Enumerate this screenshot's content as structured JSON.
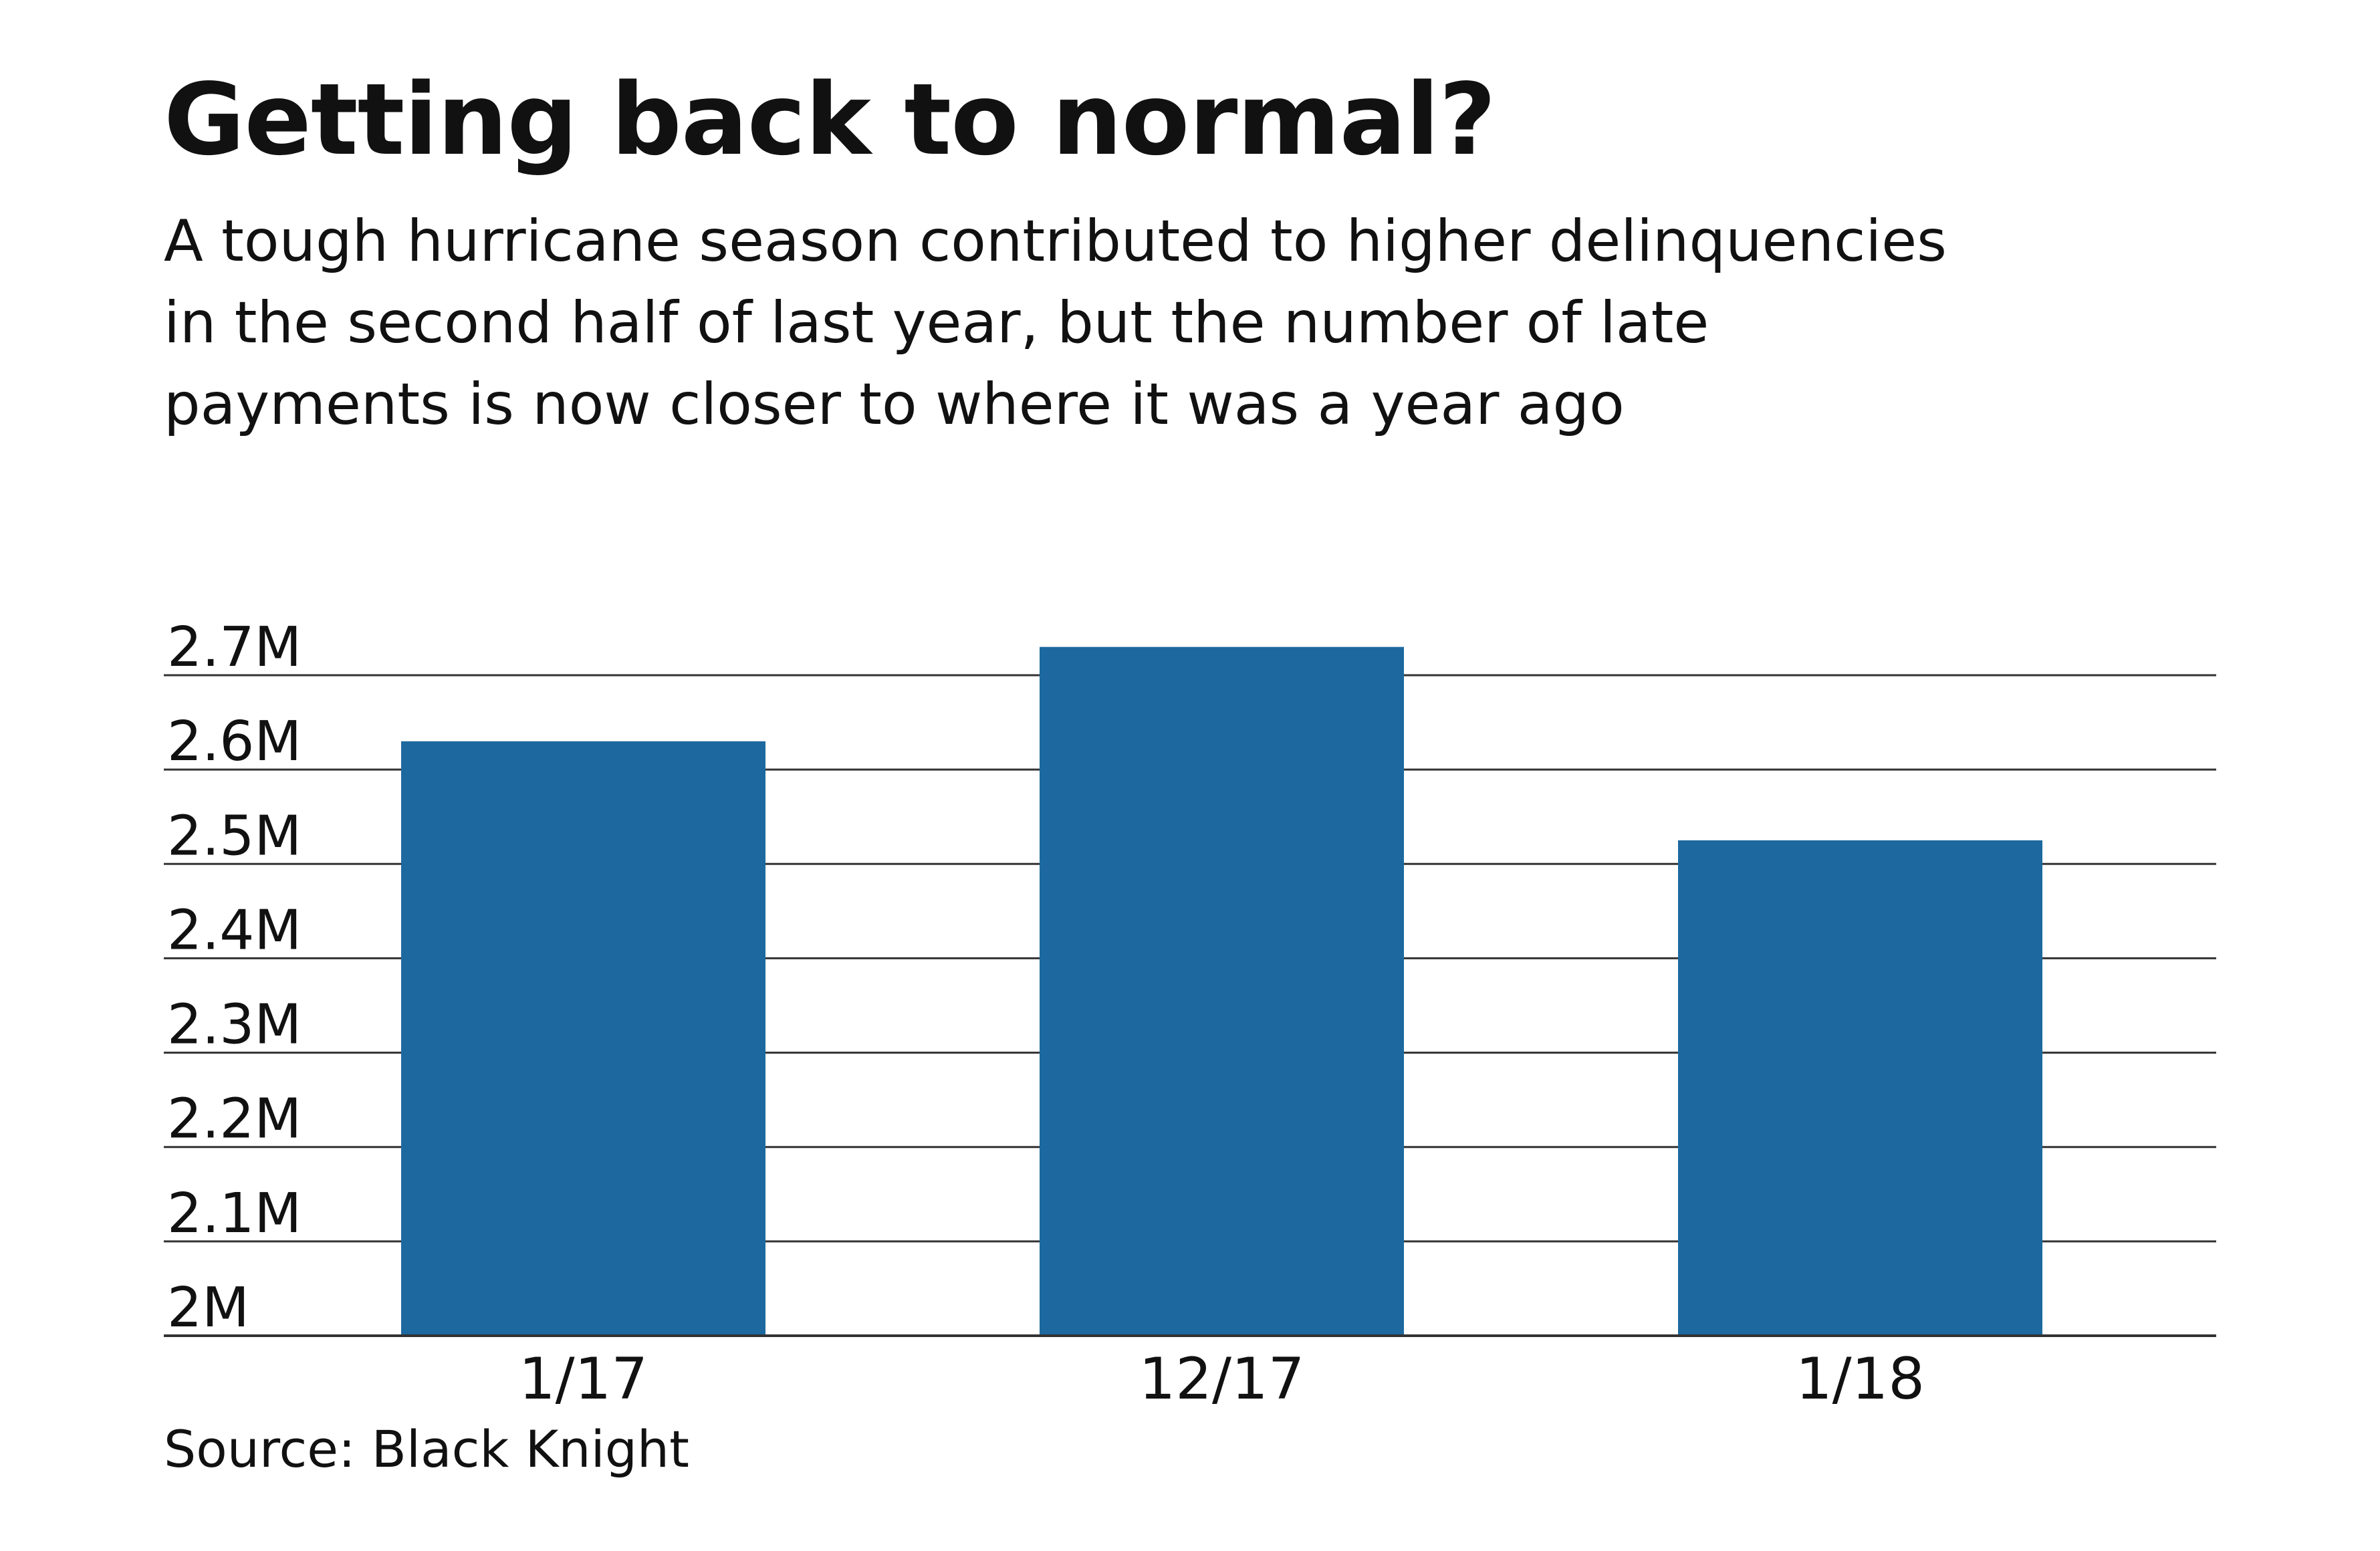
{
  "header": {
    "title": "Getting back to normal?",
    "subtitle_lines": [
      "A tough hurricane season contributed to higher delinquencies",
      "in the second half of last year, but the number of late",
      "payments is now closer to where it was a year ago"
    ]
  },
  "footer": {
    "source": "Source: Black Knight"
  },
  "colors": {
    "bar": "#1d699f",
    "gridline": "#333333",
    "text": "#111111"
  },
  "chart_data": {
    "type": "bar",
    "categories": [
      "1/17",
      "12/17",
      "1/18"
    ],
    "values": [
      2.63,
      2.73,
      2.525
    ],
    "ylim": [
      2.0,
      2.7
    ],
    "y_ticks": [
      2.0,
      2.1,
      2.2,
      2.3,
      2.4,
      2.5,
      2.6,
      2.7
    ],
    "y_tick_labels": [
      "2M",
      "2.1M",
      "2.2M",
      "2.3M",
      "2.4M",
      "2.5M",
      "2.6M",
      "2.7M"
    ],
    "unit": "M",
    "grid": true,
    "legend": "none"
  }
}
